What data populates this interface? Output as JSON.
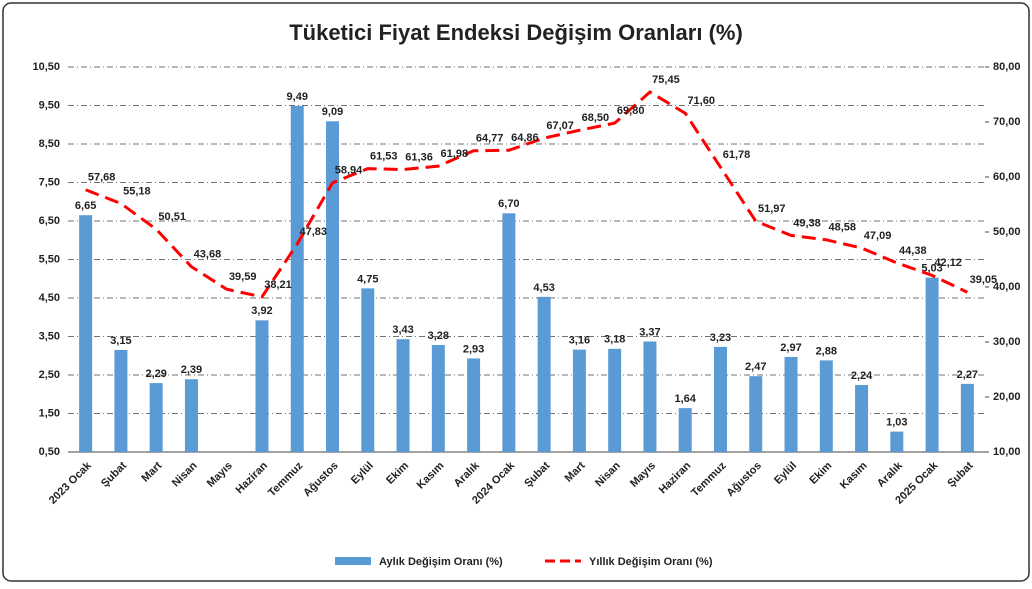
{
  "chart_data": {
    "type": "bar-line",
    "title": "Tüketici Fiyat Endeksi Değişim Oranları (%)",
    "categories": [
      "2023 Ocak",
      "Şubat",
      "Mart",
      "Nisan",
      "Mayıs",
      "Haziran",
      "Temmuz",
      "Ağustos",
      "Eylül",
      "Ekim",
      "Kasım",
      "Aralık",
      "2024 Ocak",
      "Şubat",
      "Mart",
      "Nisan",
      "Mayıs",
      "Haziran",
      "Temmuz",
      "Ağustos",
      "Eylül",
      "Ekim",
      "Kasım",
      "Aralık",
      "2025 Ocak",
      "Şubat"
    ],
    "series": [
      {
        "name": "Aylık Değişim Oranı (%)",
        "type": "bar",
        "color": "#5b9bd5",
        "values": [
          6.65,
          3.15,
          2.29,
          2.39,
          null,
          3.92,
          9.49,
          9.09,
          4.75,
          3.43,
          3.28,
          2.93,
          6.7,
          4.53,
          3.16,
          3.18,
          3.37,
          1.64,
          3.23,
          2.47,
          2.97,
          2.88,
          2.24,
          1.03,
          5.03,
          2.27
        ],
        "value_labels": [
          "6,65",
          "3,15",
          "2,29",
          "2,39",
          null,
          "3,92",
          "9,49",
          "9,09",
          "4,75",
          "3,43",
          "3,28",
          "2,93",
          "6,70",
          "4,53",
          "3,16",
          "3,18",
          "3,37",
          "1,64",
          "3,23",
          "2,47",
          "2,97",
          "2,88",
          "2,24",
          "1,03",
          "5,03",
          "2,27"
        ]
      },
      {
        "name": "Yıllık Değişim Oranı (%)",
        "type": "line",
        "axis": "y2",
        "color": "#ff0000",
        "values": [
          57.68,
          55.18,
          50.51,
          43.68,
          39.59,
          38.21,
          47.83,
          58.94,
          61.53,
          61.36,
          61.98,
          64.77,
          64.86,
          67.07,
          68.5,
          69.8,
          75.45,
          71.6,
          61.78,
          51.97,
          49.38,
          48.58,
          47.09,
          44.38,
          42.12,
          39.05
        ],
        "value_labels": [
          "57,68",
          "55,18",
          "50,51",
          "43,68",
          "39,59",
          "38,21",
          "47,83",
          "58,94",
          "61,53",
          "61,36",
          "61,98",
          "64,77",
          "64,86",
          "67,07",
          "68,50",
          "69,80",
          "75,45",
          "71,60",
          "61,78",
          "51,97",
          "49,38",
          "48,58",
          "47,09",
          "44,38",
          "42,12",
          "39,05"
        ]
      }
    ],
    "ylim": [
      0.5,
      10.5
    ],
    "yticks": [
      {
        "value": 0.5,
        "label": "0,50"
      },
      {
        "value": 1.5,
        "label": "1,50"
      },
      {
        "value": 2.5,
        "label": "2,50"
      },
      {
        "value": 3.5,
        "label": "3,50"
      },
      {
        "value": 4.5,
        "label": "4,50"
      },
      {
        "value": 5.5,
        "label": "5,50"
      },
      {
        "value": 6.5,
        "label": "6,50"
      },
      {
        "value": 7.5,
        "label": "7,50"
      },
      {
        "value": 8.5,
        "label": "8,50"
      },
      {
        "value": 9.5,
        "label": "9,50"
      },
      {
        "value": 10.5,
        "label": "10,50"
      }
    ],
    "y2lim": [
      10,
      80
    ],
    "y2ticks": [
      {
        "value": 10,
        "label": "10,00"
      },
      {
        "value": 20,
        "label": "20,00"
      },
      {
        "value": 30,
        "label": "30,00"
      },
      {
        "value": 40,
        "label": "40,00"
      },
      {
        "value": 50,
        "label": "50,00"
      },
      {
        "value": 60,
        "label": "60,00"
      },
      {
        "value": 70,
        "label": "70,00"
      },
      {
        "value": 80,
        "label": "80,00"
      }
    ],
    "grid": true,
    "legend": "bottom"
  }
}
